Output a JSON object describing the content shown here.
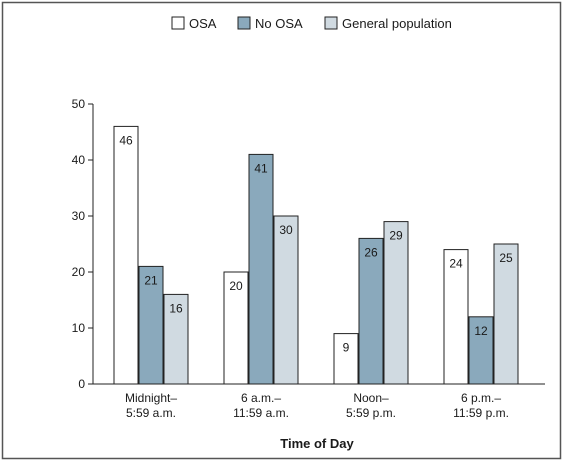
{
  "chart_data": {
    "type": "bar",
    "categories": [
      [
        "Midnight–",
        "5:59 a.m."
      ],
      [
        "6 a.m.–",
        "11:59 a.m."
      ],
      [
        "Noon–",
        "5:59 p.m."
      ],
      [
        "6 p.m.–",
        "11:59 p.m."
      ]
    ],
    "series": [
      {
        "name": "OSA",
        "values": [
          46,
          20,
          9,
          24
        ],
        "color": "#ffffff"
      },
      {
        "name": "No OSA",
        "values": [
          21,
          41,
          26,
          12
        ],
        "color": "#8aa9bc"
      },
      {
        "name": "General population",
        "values": [
          16,
          30,
          29,
          25
        ],
        "color": "#d0dae1"
      }
    ],
    "xlabel": "Time of Day",
    "ylabel": "",
    "ylim": [
      0,
      50
    ],
    "yticks": [
      0,
      10,
      20,
      30,
      40,
      50
    ],
    "grid": false,
    "legend_position": "top-right",
    "bar_stroke": "#222222",
    "frame_color": "#555555"
  }
}
